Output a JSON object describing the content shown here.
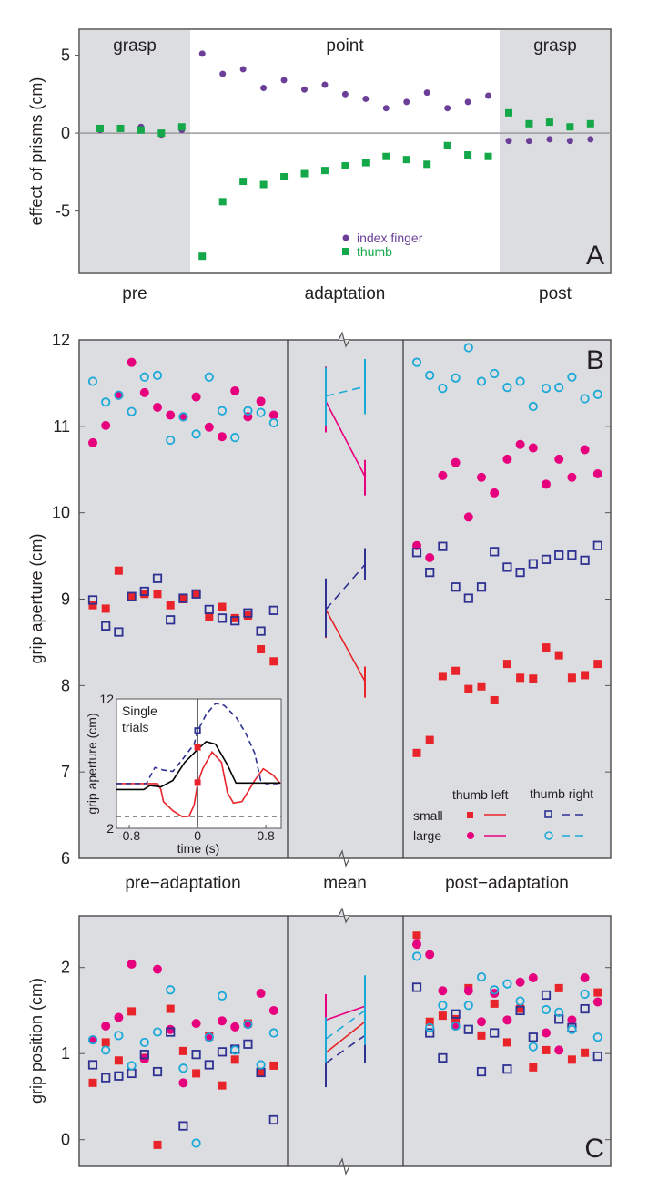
{
  "chart_data": [
    {
      "panel": "A",
      "type": "scatter",
      "ylabel": "effect of prisms (cm)",
      "ylim": [
        -9.0,
        6.67
      ],
      "yticks": [
        5,
        0,
        -5
      ],
      "phase_labels": [
        "grasp",
        "point",
        "grasp"
      ],
      "x_labels": [
        "pre",
        "adaptation",
        "post"
      ],
      "panel_letter": "A",
      "grid": false,
      "legend_position": "bottom-center",
      "series": [
        {
          "name": "index finger",
          "marker": "circle",
          "color": "#6b3f98",
          "values": [
            0.2,
            0.3,
            0.4,
            -0.1,
            0.2,
            5.1,
            3.8,
            4.1,
            2.9,
            3.4,
            2.8,
            3.1,
            2.5,
            2.2,
            1.6,
            2.0,
            2.6,
            1.6,
            2.0,
            2.4,
            -0.5,
            -0.5,
            -0.4,
            -0.5,
            -0.4
          ]
        },
        {
          "name": "thumb",
          "marker": "square",
          "color": "#15a84a",
          "values": [
            0.3,
            0.3,
            0.2,
            0.0,
            0.4,
            -7.9,
            -4.4,
            -3.1,
            -3.3,
            -2.8,
            -2.6,
            -2.4,
            -2.1,
            -1.9,
            -1.5,
            -1.7,
            -2.0,
            -0.8,
            -1.4,
            -1.5,
            1.3,
            0.6,
            0.7,
            0.4,
            0.6
          ]
        }
      ]
    },
    {
      "panel": "B",
      "type": "scatter",
      "ylabel": "grip aperture (cm)",
      "ylim": [
        6,
        12
      ],
      "yticks": [
        6,
        7,
        8,
        9,
        10,
        11,
        12
      ],
      "section_labels": [
        "pre−adaptation",
        "mean",
        "post−adaptation"
      ],
      "panel_letter": "B",
      "legend": {
        "columns": [
          "thumb left",
          "thumb right"
        ],
        "rows": [
          "small",
          "large"
        ]
      },
      "series": [
        {
          "name": "small / thumb left",
          "marker": "square-filled",
          "color": "#e8242a",
          "line": "solid",
          "pre": [
            8.93,
            8.89,
            9.33,
            9.03,
            9.06,
            9.06,
            8.93,
            9.0,
            9.06,
            8.8,
            8.91,
            8.78,
            8.81,
            8.42,
            8.28
          ],
          "post": [
            7.22,
            7.37,
            8.11,
            8.17,
            7.96,
            7.99,
            7.83,
            8.25,
            8.09,
            8.08,
            8.44,
            8.35,
            8.09,
            8.12,
            8.25
          ],
          "mean": {
            "pre": {
              "mean": 8.88,
              "low": 8.55,
              "high": 9.22
            },
            "post": {
              "mean": 8.05,
              "low": 7.86,
              "high": 8.22
            }
          }
        },
        {
          "name": "large / thumb left",
          "marker": "circle-filled",
          "color": "#e6007e",
          "line": "solid",
          "pre": [
            10.81,
            11.01,
            11.36,
            11.74,
            11.39,
            11.22,
            11.13,
            11.11,
            11.34,
            10.99,
            10.88,
            11.41,
            11.11,
            11.29,
            11.13
          ],
          "post": [
            9.62,
            9.48,
            10.43,
            10.58,
            9.95,
            10.41,
            10.23,
            10.62,
            10.79,
            10.75,
            10.33,
            10.62,
            10.41,
            10.73,
            10.45
          ],
          "mean": {
            "pre": {
              "mean": 11.29,
              "low": 10.93,
              "high": 11.69
            },
            "post": {
              "mean": 10.42,
              "low": 10.2,
              "high": 10.61
            }
          }
        },
        {
          "name": "small / thumb right",
          "marker": "square-open",
          "color": "#2e3192",
          "line": "dashed",
          "pre": [
            8.99,
            8.69,
            8.62,
            9.03,
            9.09,
            9.24,
            8.76,
            9.01,
            9.06,
            8.88,
            8.78,
            8.75,
            8.84,
            8.63,
            8.87
          ],
          "post": [
            9.54,
            9.31,
            9.61,
            9.14,
            9.01,
            9.14,
            9.55,
            9.37,
            9.31,
            9.41,
            9.46,
            9.51,
            9.51,
            9.45,
            9.62
          ],
          "mean": {
            "pre": {
              "mean": 8.88,
              "low": 8.56,
              "high": 9.24
            },
            "post": {
              "mean": 9.4,
              "low": 9.22,
              "high": 9.59
            }
          }
        },
        {
          "name": "large / thumb right",
          "marker": "circle-open",
          "color": "#1ba9d8",
          "line": "dashed",
          "pre": [
            11.52,
            11.28,
            11.36,
            11.17,
            11.57,
            11.59,
            10.84,
            11.11,
            10.91,
            11.57,
            11.18,
            10.87,
            11.18,
            11.16,
            11.04
          ],
          "post": [
            11.74,
            11.59,
            11.44,
            11.56,
            11.91,
            11.52,
            11.61,
            11.45,
            11.52,
            11.23,
            11.44,
            11.45,
            11.57,
            11.32,
            11.37
          ],
          "mean": {
            "pre": {
              "mean": 11.35,
              "low": 11.01,
              "high": 11.68
            },
            "post": {
              "mean": 11.46,
              "low": 11.14,
              "high": 11.78
            }
          }
        }
      ],
      "inset": {
        "type": "line",
        "title_lines": [
          "Single",
          "trials"
        ],
        "xlabel": "time (s)",
        "ylabel": "grip aperture (cm)",
        "xlim": [
          -0.95,
          0.98
        ],
        "ylim": [
          2,
          12
        ],
        "xticks": [
          -0.8,
          0,
          0.8
        ],
        "yticks": [
          2,
          12
        ],
        "baseline": 2.9,
        "series": [
          {
            "name": "thumb left, small (single trial)",
            "color": "#e8242a",
            "dash": false,
            "points": [
              [
                -0.95,
                5.46
              ],
              [
                -0.47,
                5.46
              ],
              [
                -0.43,
                5.0
              ],
              [
                -0.4,
                4.06
              ],
              [
                -0.29,
                3.36
              ],
              [
                -0.18,
                2.9
              ],
              [
                -0.1,
                2.93
              ],
              [
                -0.04,
                3.8
              ],
              [
                0,
                5.46
              ],
              [
                0.06,
                6.6
              ],
              [
                0.17,
                7.9
              ],
              [
                0.28,
                7.1
              ],
              [
                0.35,
                4.76
              ],
              [
                0.42,
                3.95
              ],
              [
                0.52,
                4.06
              ],
              [
                0.67,
                5.7
              ],
              [
                0.77,
                6.6
              ],
              [
                0.88,
                6.15
              ],
              [
                0.97,
                5.46
              ]
            ]
          },
          {
            "name": "thumb right, small (single trial)",
            "color": "#2e3192",
            "dash": true,
            "points": [
              [
                -0.95,
                5.46
              ],
              [
                -0.6,
                5.46
              ],
              [
                -0.5,
                6.7
              ],
              [
                -0.4,
                6.5
              ],
              [
                -0.29,
                6.4
              ],
              [
                -0.18,
                7.3
              ],
              [
                -0.04,
                8.5
              ],
              [
                0,
                9.5
              ],
              [
                0.1,
                10.8
              ],
              [
                0.21,
                11.65
              ],
              [
                0.31,
                11.5
              ],
              [
                0.45,
                10.6
              ],
              [
                0.56,
                9.4
              ],
              [
                0.67,
                7.8
              ],
              [
                0.74,
                5.7
              ],
              [
                0.8,
                5.46
              ],
              [
                0.97,
                5.46
              ]
            ]
          },
          {
            "name": "mean trace",
            "color": "#000000",
            "dash": false,
            "points": [
              [
                -0.95,
                5.0
              ],
              [
                -0.63,
                5.0
              ],
              [
                -0.56,
                5.3
              ],
              [
                -0.43,
                5.2
              ],
              [
                -0.29,
                5.7
              ],
              [
                -0.15,
                7.1
              ],
              [
                0,
                8.1
              ],
              [
                0.1,
                8.7
              ],
              [
                0.21,
                8.5
              ],
              [
                0.35,
                6.9
              ],
              [
                0.45,
                5.5
              ],
              [
                0.97,
                5.5
              ]
            ]
          }
        ],
        "markers": [
          {
            "t": 0,
            "value": 9.55,
            "color": "#2e3192",
            "marker": "square-open"
          },
          {
            "t": 0,
            "value": 8.26,
            "color": "#e8242a",
            "marker": "square-filled"
          },
          {
            "t": 0,
            "value": 5.53,
            "color": "#e8242a",
            "marker": "square-filled"
          }
        ]
      }
    },
    {
      "panel": "C",
      "type": "scatter",
      "ylabel": "grip position (cm)",
      "ylim": [
        -0.31,
        2.6
      ],
      "yticks": [
        0,
        1,
        2
      ],
      "panel_letter": "C",
      "series": [
        {
          "name": "small / thumb left",
          "marker": "square-filled",
          "color": "#e8242a",
          "line": "solid",
          "pre": [
            0.66,
            1.13,
            0.92,
            1.49,
            0.95,
            -0.06,
            1.52,
            1.03,
            0.77,
            1.2,
            0.63,
            0.93,
            1.35,
            0.79,
            0.86
          ],
          "post": [
            2.37,
            1.37,
            1.44,
            1.4,
            1.76,
            1.21,
            1.58,
            1.13,
            1.52,
            0.84,
            1.04,
            1.76,
            0.93,
            1.01,
            1.71
          ],
          "mean": {
            "pre": {
              "mean": 1.01,
              "low": 0.72,
              "high": 1.3
            },
            "post": {
              "mean": 1.37,
              "low": 1.05,
              "high": 1.7
            }
          }
        },
        {
          "name": "large / thumb left",
          "marker": "circle-filled",
          "color": "#e6007e",
          "line": "solid",
          "pre": [
            1.16,
            1.32,
            1.42,
            2.04,
            0.94,
            1.98,
            1.28,
            0.66,
            1.35,
            1.19,
            1.38,
            1.31,
            1.34,
            1.7,
            1.5
          ],
          "post": [
            2.27,
            2.15,
            1.73,
            1.32,
            1.73,
            1.37,
            1.7,
            1.39,
            1.83,
            1.88,
            1.24,
            1.04,
            1.39,
            1.88,
            1.6
          ],
          "mean": {
            "pre": {
              "mean": 1.39,
              "low": 1.1,
              "high": 1.69
            },
            "post": {
              "mean": 1.55,
              "low": 1.2,
              "high": 1.9
            }
          }
        },
        {
          "name": "small / thumb right",
          "marker": "square-open",
          "color": "#2e3192",
          "line": "dashed",
          "pre": [
            0.87,
            0.72,
            0.74,
            0.77,
            0.99,
            0.79,
            1.25,
            0.16,
            0.99,
            0.87,
            1.02,
            1.05,
            1.11,
            0.78,
            0.23
          ],
          "post": [
            1.77,
            1.24,
            0.95,
            1.46,
            1.28,
            0.79,
            1.24,
            0.82,
            1.5,
            1.19,
            1.68,
            1.4,
            1.3,
            1.52,
            0.97
          ],
          "mean": {
            "pre": {
              "mean": 0.89,
              "low": 0.61,
              "high": 1.24
            },
            "post": {
              "mean": 1.21,
              "low": 0.89,
              "high": 1.5
            }
          }
        },
        {
          "name": "large / thumb right",
          "marker": "circle-open",
          "color": "#1ba9d8",
          "line": "dashed",
          "pre": [
            1.16,
            1.04,
            1.21,
            0.86,
            1.13,
            1.25,
            1.74,
            0.83,
            -0.04,
            1.19,
            1.67,
            1.04,
            1.34,
            0.87,
            1.24
          ],
          "post": [
            2.13,
            1.3,
            1.56,
            1.32,
            1.56,
            1.89,
            1.74,
            1.81,
            1.61,
            1.08,
            1.51,
            1.48,
            1.28,
            1.69,
            1.19
          ],
          "mean": {
            "pre": {
              "mean": 1.17,
              "low": 0.9,
              "high": 1.42
            },
            "post": {
              "mean": 1.5,
              "low": 1.1,
              "high": 1.91
            }
          }
        }
      ]
    }
  ]
}
